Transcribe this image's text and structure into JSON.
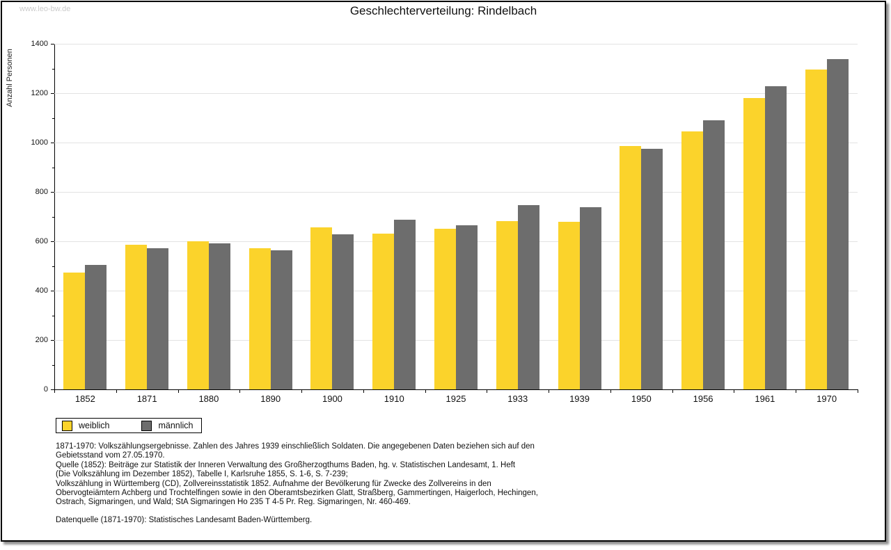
{
  "watermark": "www.leo-bw.de",
  "title": "Geschlechterverteilung: Rindelbach",
  "chart_data": {
    "type": "bar",
    "title": "Geschlechterverteilung: Rindelbach",
    "xlabel": "",
    "ylabel": "Anzahl Personen",
    "ylim": [
      0,
      1400
    ],
    "ytick_step": 200,
    "yminor_step": 100,
    "grid": true,
    "legend_position": "bottom-left",
    "categories": [
      "1852",
      "1871",
      "1880",
      "1890",
      "1900",
      "1910",
      "1925",
      "1933",
      "1939",
      "1950",
      "1956",
      "1961",
      "1970"
    ],
    "series": [
      {
        "name": "weiblich",
        "color": "#FBD32B",
        "values": [
          473,
          586,
          600,
          571,
          655,
          632,
          652,
          682,
          678,
          985,
          1045,
          1180,
          1295
        ]
      },
      {
        "name": "männlich",
        "color": "#6D6D6D",
        "values": [
          505,
          573,
          592,
          562,
          628,
          688,
          664,
          747,
          738,
          975,
          1090,
          1228,
          1338
        ]
      }
    ]
  },
  "footer": {
    "lines": [
      "1871-1970: Volkszählungsergebnisse. Zahlen des Jahres 1939 einschließlich Soldaten. Die angegebenen Daten beziehen sich auf den",
      "Gebietsstand vom 27.05.1970.",
      "Quelle (1852): Beiträge zur Statistik der Inneren Verwaltung des Großherzogthums Baden, hg. v. Statistischen Landesamt, 1. Heft",
      "(Die Volkszählung im Dezember 1852), Tabelle I, Karlsruhe 1855, S. 1-6, S. 7-239;",
      "Volkszählung in Württemberg (CD), Zollvereinsstatistik 1852. Aufnahme der Bevölkerung für Zwecke des Zollvereins in den",
      "Obervogteiämtern Achberg und Trochtelfingen sowie in den Oberamtsbezirken Glatt, Straßberg, Gammertingen, Haigerloch, Hechingen,",
      "Ostrach, Sigmaringen, und Wald; StA Sigmaringen Ho 235 T 4-5 Pr. Reg. Sigmaringen, Nr. 460-469."
    ],
    "datasource": "Datenquelle (1871-1970): Statistisches Landesamt Baden-Württemberg."
  },
  "colors": {
    "grid": "#e2e2e2",
    "axis": "#000000",
    "watermark": "#cbcbcb",
    "frame_shadow": "#8f8f8f"
  }
}
